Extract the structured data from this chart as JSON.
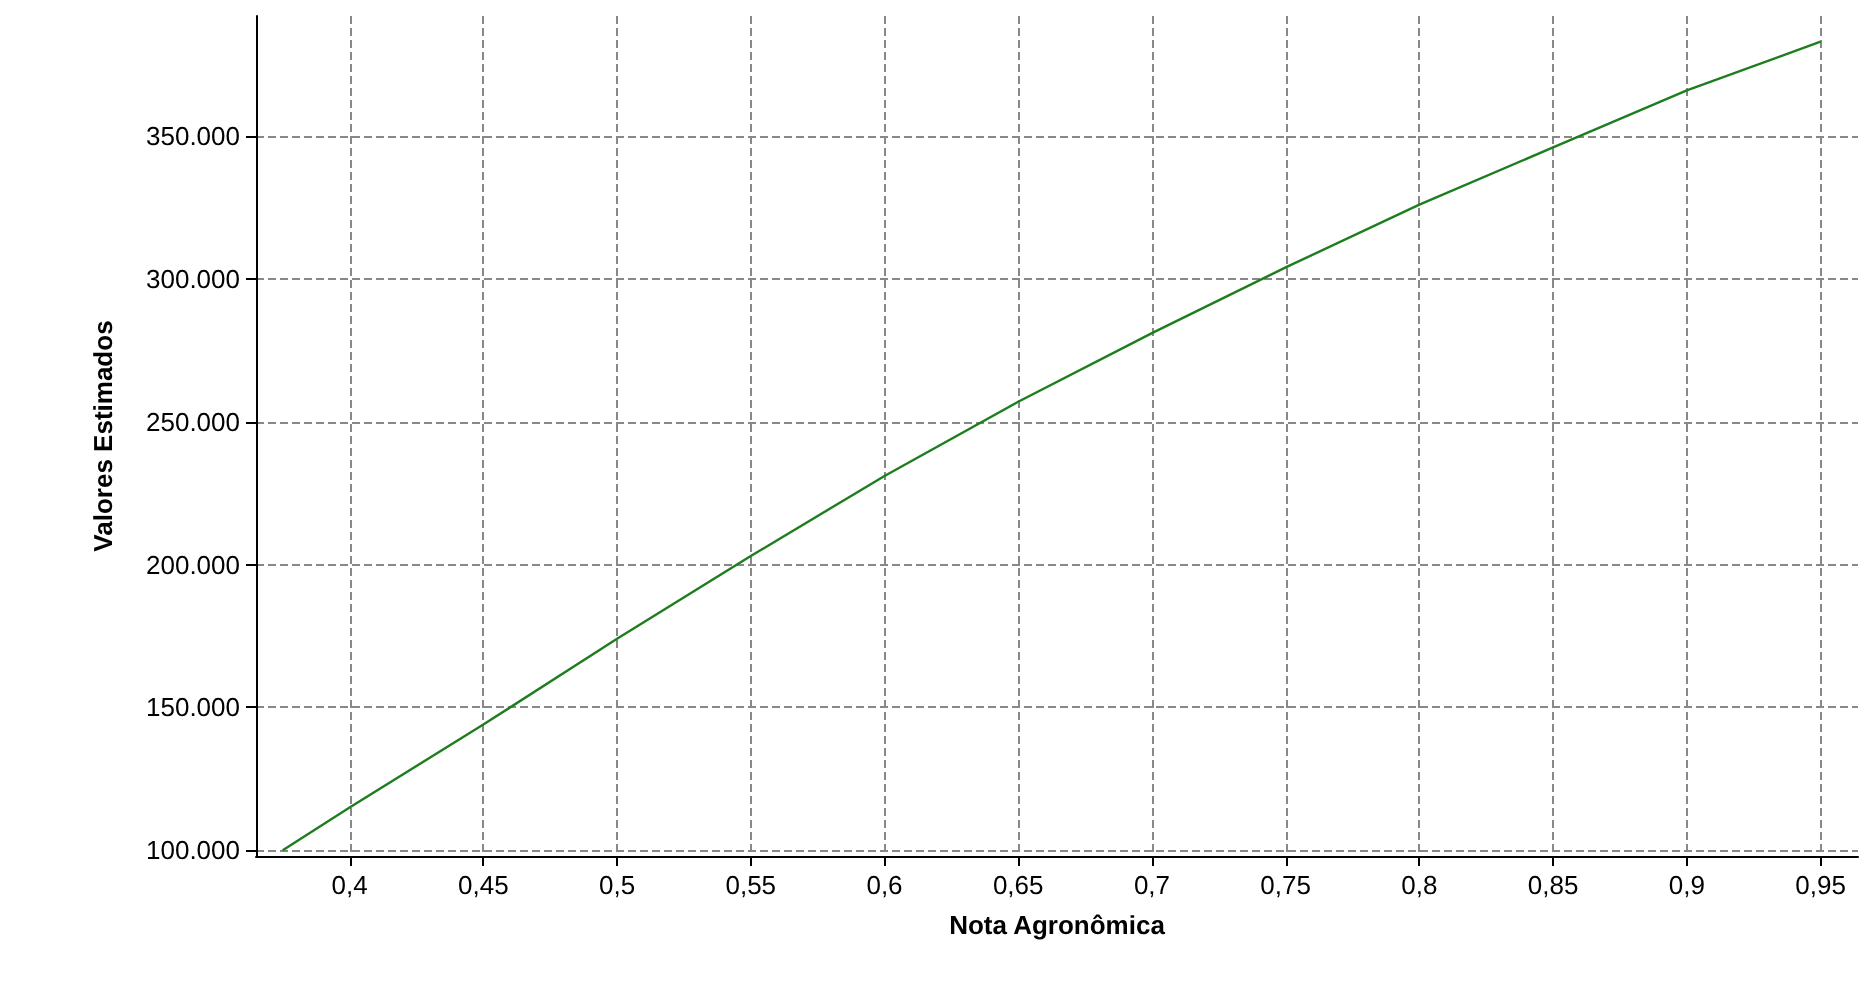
{
  "chart_data": {
    "type": "line",
    "xlabel": "Nota Agronômica",
    "ylabel": "Valores Estimados",
    "x": [
      0.375,
      0.4,
      0.45,
      0.5,
      0.55,
      0.6,
      0.65,
      0.7,
      0.75,
      0.8,
      0.85,
      0.9,
      0.95
    ],
    "series": [
      {
        "color": "#1e7d1e",
        "values": [
          100000,
          115000,
          144000,
          174000,
          203000,
          231000,
          257000,
          281000,
          304000,
          326000,
          346000,
          366000,
          383000
        ]
      }
    ],
    "xlim": [
      0.365,
      0.964
    ],
    "ylim": [
      98000,
      392000
    ],
    "xticks": [
      {
        "value": 0.4,
        "label": "0,4"
      },
      {
        "value": 0.45,
        "label": "0,45"
      },
      {
        "value": 0.5,
        "label": "0,5"
      },
      {
        "value": 0.55,
        "label": "0,55"
      },
      {
        "value": 0.6,
        "label": "0,6"
      },
      {
        "value": 0.65,
        "label": "0,65"
      },
      {
        "value": 0.7,
        "label": "0,7"
      },
      {
        "value": 0.75,
        "label": "0,75"
      },
      {
        "value": 0.8,
        "label": "0,8"
      },
      {
        "value": 0.85,
        "label": "0,85"
      },
      {
        "value": 0.9,
        "label": "0,9"
      },
      {
        "value": 0.95,
        "label": "0,95"
      }
    ],
    "yticks": [
      {
        "value": 100000,
        "label": "100.000"
      },
      {
        "value": 150000,
        "label": "150.000"
      },
      {
        "value": 200000,
        "label": "200.000"
      },
      {
        "value": 250000,
        "label": "250.000"
      },
      {
        "value": 300000,
        "label": "300.000"
      },
      {
        "value": 350000,
        "label": "350.000"
      }
    ],
    "grid": true,
    "marker": "none",
    "line_style": "solid"
  }
}
